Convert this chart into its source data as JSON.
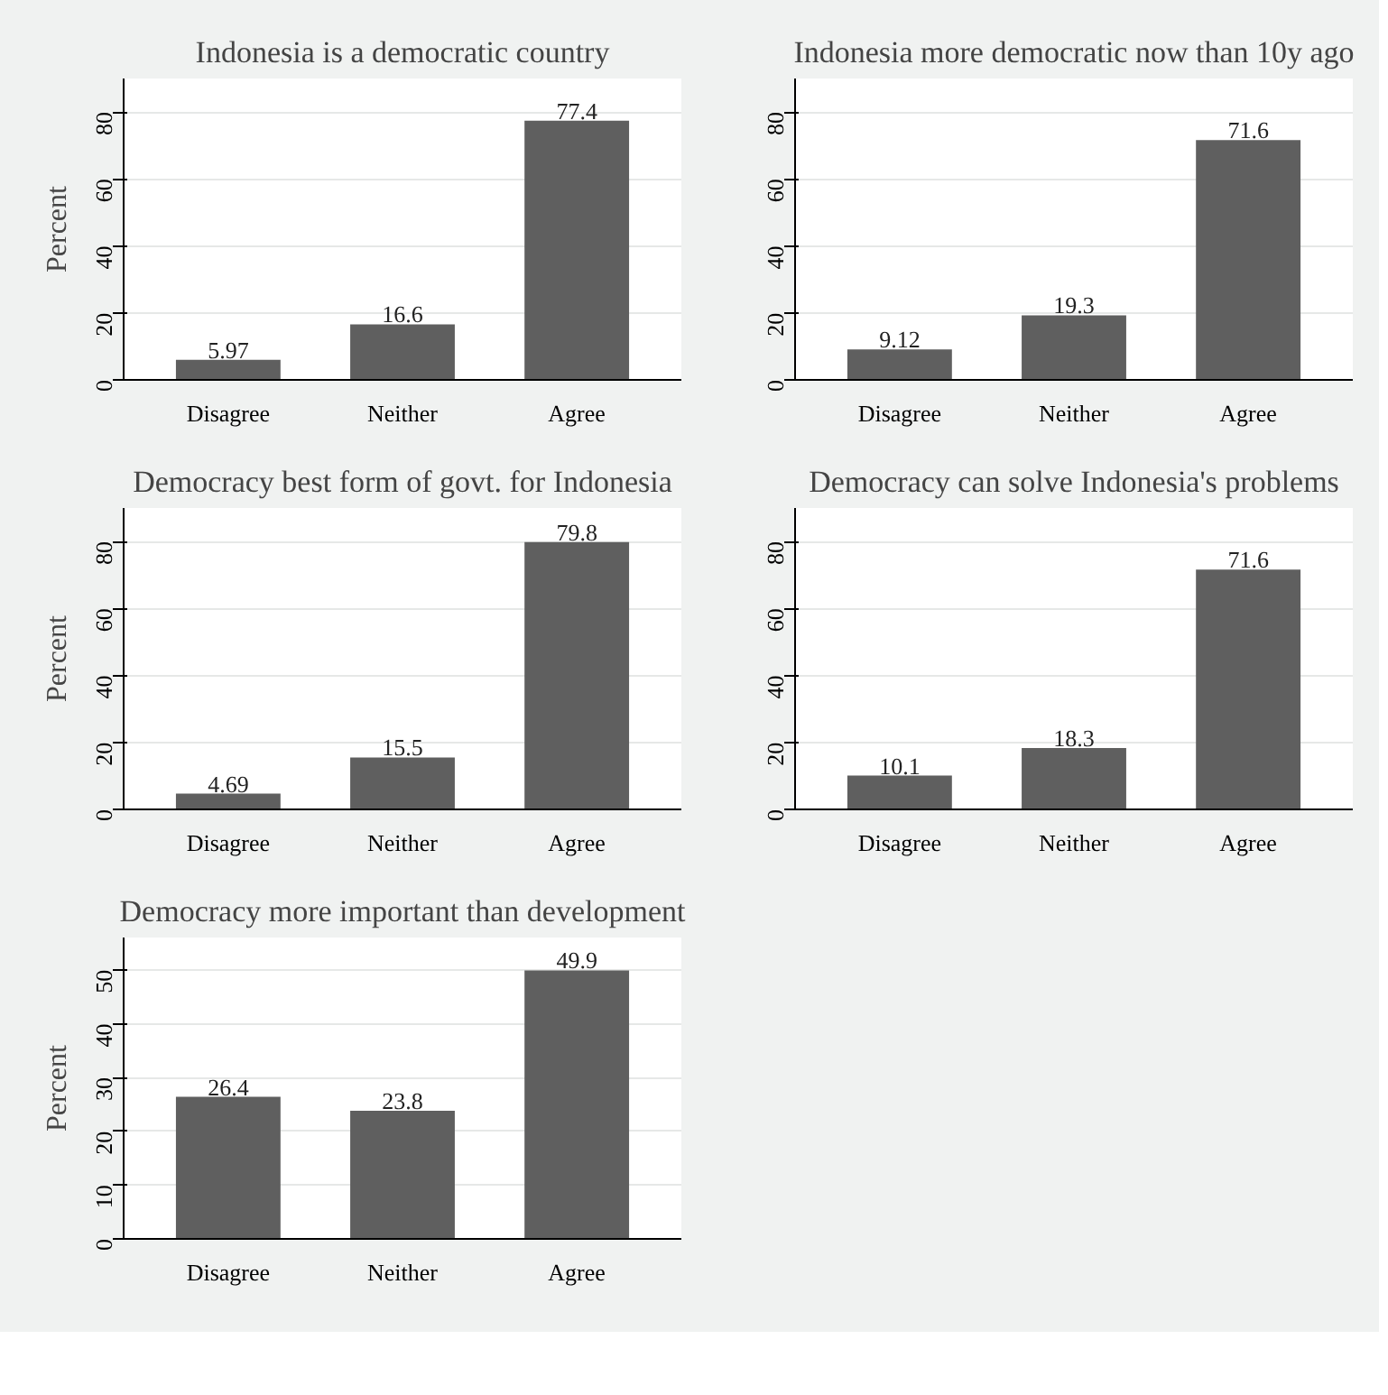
{
  "chart_data": [
    {
      "type": "bar",
      "title": "Indonesia is a democratic country",
      "ylabel": "Percent",
      "categories": [
        "Disagree",
        "Neither",
        "Agree"
      ],
      "values": [
        5.97,
        16.6,
        77.4
      ],
      "color": "#5f5f5f",
      "ylim": [
        0,
        90
      ],
      "yticks": [
        0,
        20,
        40,
        60,
        80
      ],
      "grid": "y",
      "data_labels": true
    },
    {
      "type": "bar",
      "title": "Indonesia more democratic now than 10y ago",
      "categories": [
        "Disagree",
        "Neither",
        "Agree"
      ],
      "values": [
        9.12,
        19.3,
        71.6
      ],
      "color": "#5f5f5f",
      "ylim": [
        0,
        90
      ],
      "yticks": [
        0,
        20,
        40,
        60,
        80
      ],
      "grid": "y",
      "data_labels": true
    },
    {
      "type": "bar",
      "title": "Democracy best form of govt. for Indonesia",
      "ylabel": "Percent",
      "categories": [
        "Disagree",
        "Neither",
        "Agree"
      ],
      "values": [
        4.69,
        15.5,
        79.8
      ],
      "color": "#5f5f5f",
      "ylim": [
        0,
        90
      ],
      "yticks": [
        0,
        20,
        40,
        60,
        80
      ],
      "grid": "y",
      "data_labels": true
    },
    {
      "type": "bar",
      "title": "Democracy can solve Indonesia's problems",
      "categories": [
        "Disagree",
        "Neither",
        "Agree"
      ],
      "values": [
        10.1,
        18.3,
        71.6
      ],
      "color": "#5f5f5f",
      "ylim": [
        0,
        90
      ],
      "yticks": [
        0,
        20,
        40,
        60,
        80
      ],
      "grid": "y",
      "data_labels": true
    },
    {
      "type": "bar",
      "title": "Democracy more important than development",
      "ylabel": "Percent",
      "categories": [
        "Disagree",
        "Neither",
        "Agree"
      ],
      "values": [
        26.4,
        23.8,
        49.9
      ],
      "color": "#5f5f5f",
      "ylim": [
        0,
        56
      ],
      "yticks": [
        0,
        10,
        20,
        30,
        40,
        50
      ],
      "grid": "y",
      "data_labels": true
    }
  ]
}
